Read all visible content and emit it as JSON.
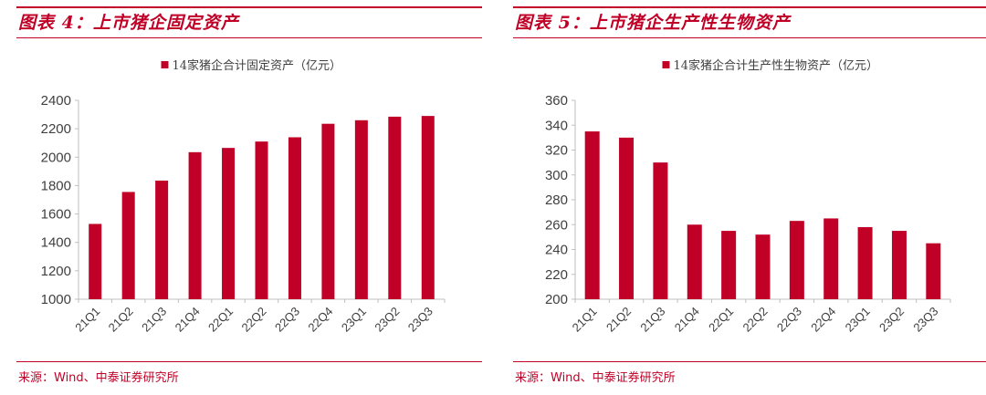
{
  "colors": {
    "accent": "#C00027",
    "axis": "#BFBFBF",
    "text": "#404040"
  },
  "panels": [
    {
      "title": "图表 4：上市猪企固定资产",
      "source": "来源：Wind、中泰证券研究所",
      "chart_data": {
        "type": "bar",
        "legend": "14家猪企合计固定资产（亿元）",
        "legend_position": "top-center",
        "categories": [
          "21Q1",
          "21Q2",
          "21Q3",
          "21Q4",
          "22Q1",
          "22Q2",
          "22Q3",
          "22Q4",
          "23Q1",
          "23Q2",
          "23Q3"
        ],
        "values": [
          1530,
          1755,
          1835,
          2035,
          2065,
          2110,
          2140,
          2235,
          2260,
          2285,
          2290
        ],
        "yticks": [
          1000,
          1200,
          1400,
          1600,
          1800,
          2000,
          2200,
          2400
        ],
        "ylim": [
          1000,
          2400
        ],
        "grid": false
      }
    },
    {
      "title": "图表 5：上市猪企生产性生物资产",
      "source": "来源：Wind、中泰证券研究所",
      "chart_data": {
        "type": "bar",
        "legend": "14家猪企合计生产性生物资产（亿元）",
        "legend_position": "top-center",
        "categories": [
          "21Q1",
          "21Q2",
          "21Q3",
          "21Q4",
          "22Q1",
          "22Q2",
          "22Q3",
          "22Q4",
          "23Q1",
          "23Q2",
          "23Q3"
        ],
        "values": [
          335,
          330,
          310,
          260,
          255,
          252,
          263,
          265,
          258,
          255,
          245
        ],
        "yticks": [
          200,
          220,
          240,
          260,
          280,
          300,
          320,
          340,
          360
        ],
        "ylim": [
          200,
          360
        ],
        "grid": false
      }
    }
  ]
}
